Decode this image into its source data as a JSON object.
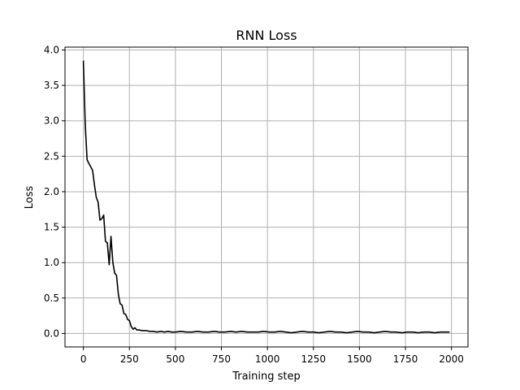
{
  "chart_data": {
    "type": "line",
    "title": "RNN Loss",
    "xlabel": "Training step",
    "ylabel": "Loss",
    "xlim": [
      -100,
      2090
    ],
    "ylim": [
      -0.19,
      4.04
    ],
    "xticks": [
      0,
      250,
      500,
      750,
      1000,
      1250,
      1500,
      1750,
      2000
    ],
    "xtick_labels": [
      "0",
      "250",
      "500",
      "750",
      "1000",
      "1250",
      "1500",
      "1750",
      "2000"
    ],
    "yticks": [
      0.0,
      0.5,
      1.0,
      1.5,
      2.0,
      2.5,
      3.0,
      3.5,
      4.0
    ],
    "ytick_labels": [
      "0.0",
      "0.5",
      "1.0",
      "1.5",
      "2.0",
      "2.5",
      "3.0",
      "3.5",
      "4.0"
    ],
    "grid": true,
    "series": [
      {
        "color": "#000000",
        "x": [
          0,
          10,
          20,
          30,
          40,
          50,
          60,
          70,
          80,
          90,
          100,
          110,
          120,
          130,
          140,
          150,
          160,
          170,
          180,
          190,
          200,
          210,
          220,
          230,
          240,
          250,
          260,
          270,
          280,
          290,
          300,
          320,
          340,
          360,
          380,
          400,
          420,
          440,
          460,
          480,
          500,
          530,
          560,
          590,
          620,
          650,
          680,
          710,
          740,
          770,
          800,
          830,
          860,
          890,
          920,
          950,
          980,
          1010,
          1040,
          1070,
          1100,
          1130,
          1160,
          1190,
          1220,
          1250,
          1280,
          1310,
          1340,
          1370,
          1400,
          1430,
          1460,
          1490,
          1520,
          1550,
          1580,
          1610,
          1640,
          1670,
          1700,
          1730,
          1760,
          1790,
          1820,
          1850,
          1880,
          1910,
          1940,
          1970,
          1990
        ],
        "y": [
          3.85,
          2.95,
          2.45,
          2.4,
          2.35,
          2.3,
          2.1,
          1.92,
          1.85,
          1.6,
          1.62,
          1.67,
          1.3,
          1.28,
          0.97,
          1.37,
          1.0,
          0.85,
          0.82,
          0.55,
          0.42,
          0.4,
          0.28,
          0.27,
          0.2,
          0.18,
          0.1,
          0.06,
          0.08,
          0.05,
          0.05,
          0.04,
          0.04,
          0.03,
          0.03,
          0.02,
          0.03,
          0.02,
          0.03,
          0.02,
          0.02,
          0.03,
          0.02,
          0.02,
          0.03,
          0.02,
          0.02,
          0.03,
          0.02,
          0.02,
          0.03,
          0.02,
          0.03,
          0.02,
          0.02,
          0.02,
          0.03,
          0.02,
          0.02,
          0.03,
          0.02,
          0.01,
          0.02,
          0.03,
          0.02,
          0.02,
          0.01,
          0.02,
          0.03,
          0.02,
          0.02,
          0.01,
          0.02,
          0.03,
          0.02,
          0.02,
          0.01,
          0.02,
          0.03,
          0.02,
          0.02,
          0.01,
          0.02,
          0.02,
          0.01,
          0.02,
          0.02,
          0.01,
          0.02,
          0.02,
          0.02
        ]
      }
    ]
  }
}
